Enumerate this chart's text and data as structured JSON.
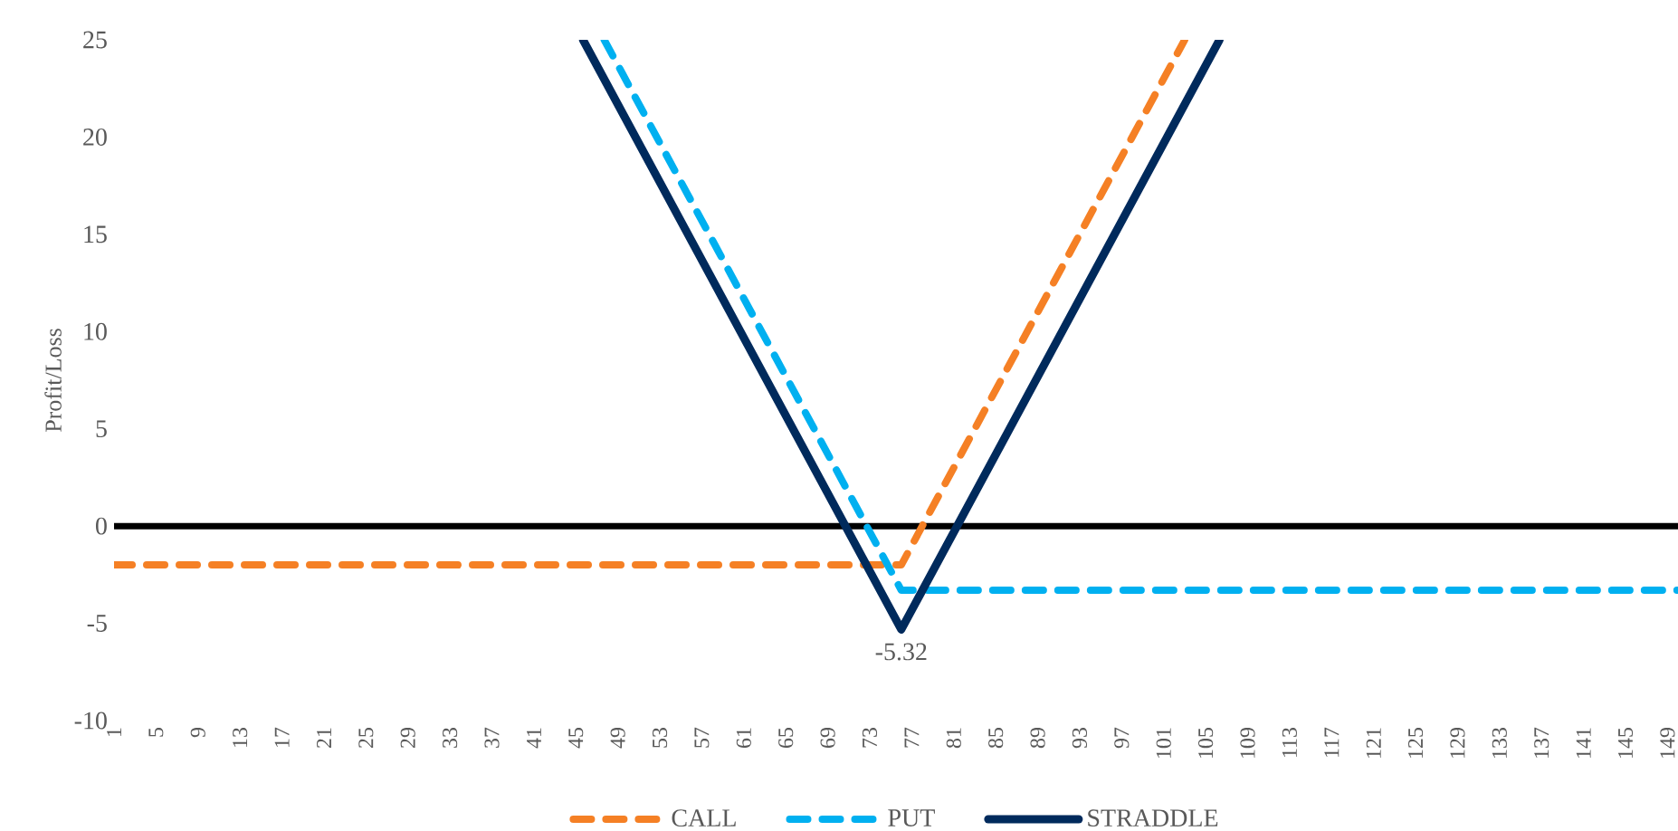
{
  "chart_data": {
    "type": "line",
    "ylabel": "Profit/Loss",
    "xlim": [
      1,
      150
    ],
    "xticks": [
      1,
      5,
      9,
      13,
      17,
      21,
      25,
      29,
      33,
      37,
      41,
      45,
      49,
      53,
      57,
      61,
      65,
      69,
      73,
      77,
      81,
      85,
      89,
      93,
      97,
      101,
      105,
      109,
      113,
      117,
      121,
      125,
      129,
      133,
      137,
      141,
      145,
      149
    ],
    "ylim": [
      -10,
      25
    ],
    "yticks": [
      -10,
      -5,
      0,
      5,
      10,
      15,
      20,
      25
    ],
    "grid": false,
    "legend": "bottom",
    "marker": "none",
    "ref_lines": [
      {
        "axis": "y",
        "value": 0,
        "color": "#000000"
      }
    ],
    "series": [
      {
        "name": "CALL",
        "color": "#f58025",
        "line_style": "dashed",
        "x": [
          1,
          76,
          103
        ],
        "values": [
          -2,
          -2,
          25
        ]
      },
      {
        "name": "PUT",
        "color": "#00b0f0",
        "line_style": "dashed",
        "x": [
          47.7,
          76,
          150
        ],
        "values": [
          25,
          -3.3,
          -3.3
        ]
      },
      {
        "name": "STRADDLE",
        "color": "#002a5c",
        "line_style": "solid",
        "x": [
          45.68,
          76,
          106.32
        ],
        "values": [
          25,
          -5.32,
          25
        ],
        "value_labels": [
          null,
          "-5.32",
          null
        ]
      }
    ]
  }
}
